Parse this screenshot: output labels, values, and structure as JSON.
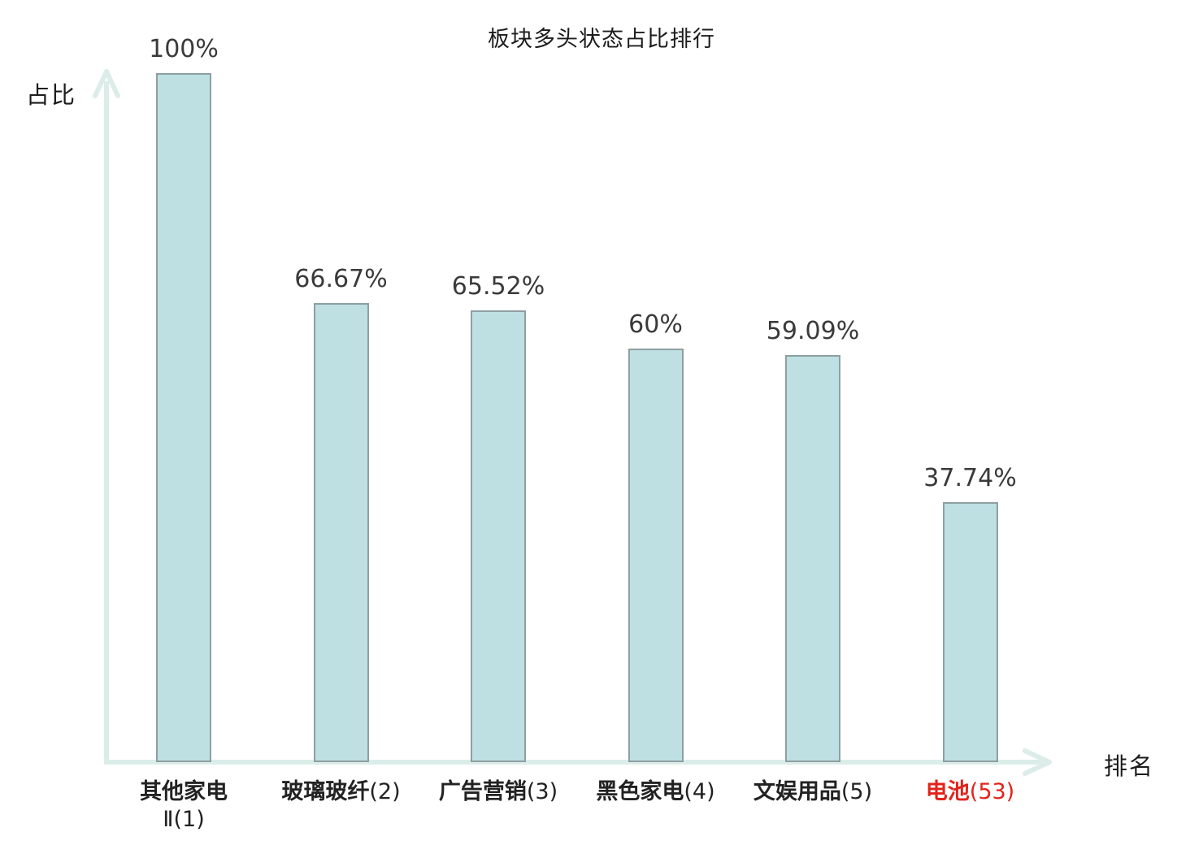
{
  "title": "板块多头状态占比排行",
  "axes": {
    "y_label": "占比",
    "x_label": "排名"
  },
  "chart_data": {
    "type": "bar",
    "title": "板块多头状态占比排行",
    "xlabel": "排名",
    "ylabel": "占比",
    "ylim": [
      0,
      100
    ],
    "grid": false,
    "legend": null,
    "categories": [
      "其他家电Ⅱ(1)",
      "玻璃玻纤(2)",
      "广告营销(3)",
      "黑色家电(4)",
      "文娱用品(5)",
      "电池(53)"
    ],
    "values": [
      100,
      66.67,
      65.52,
      60,
      59.09,
      37.74
    ],
    "value_labels": [
      "100%",
      "66.67%",
      "65.52%",
      "60%",
      "59.09%",
      "37.74%"
    ],
    "bars": [
      {
        "name": "其他家电",
        "suffix": "Ⅱ(1)",
        "two_lines": true,
        "value": 100,
        "value_label": "100%",
        "highlight": false
      },
      {
        "name": "玻璃玻纤",
        "suffix": "(2)",
        "two_lines": false,
        "value": 66.67,
        "value_label": "66.67%",
        "highlight": false
      },
      {
        "name": "广告营销",
        "suffix": "(3)",
        "two_lines": false,
        "value": 65.52,
        "value_label": "65.52%",
        "highlight": false
      },
      {
        "name": "黑色家电",
        "suffix": "(4)",
        "two_lines": false,
        "value": 60,
        "value_label": "60%",
        "highlight": false
      },
      {
        "name": "文娱用品",
        "suffix": "(5)",
        "two_lines": false,
        "value": 59.09,
        "value_label": "59.09%",
        "highlight": false
      },
      {
        "name": "电池",
        "suffix": "(53)",
        "two_lines": false,
        "value": 37.74,
        "value_label": "37.74%",
        "highlight": true
      }
    ],
    "colors": {
      "bar_fill": "#bee0e3",
      "bar_border": "#8e9fa3",
      "axis": "#dcede9",
      "value_text": "#3a3a3a",
      "category_text": "#222222",
      "highlight_text": "#e2231a",
      "background": "#ffffff"
    }
  }
}
